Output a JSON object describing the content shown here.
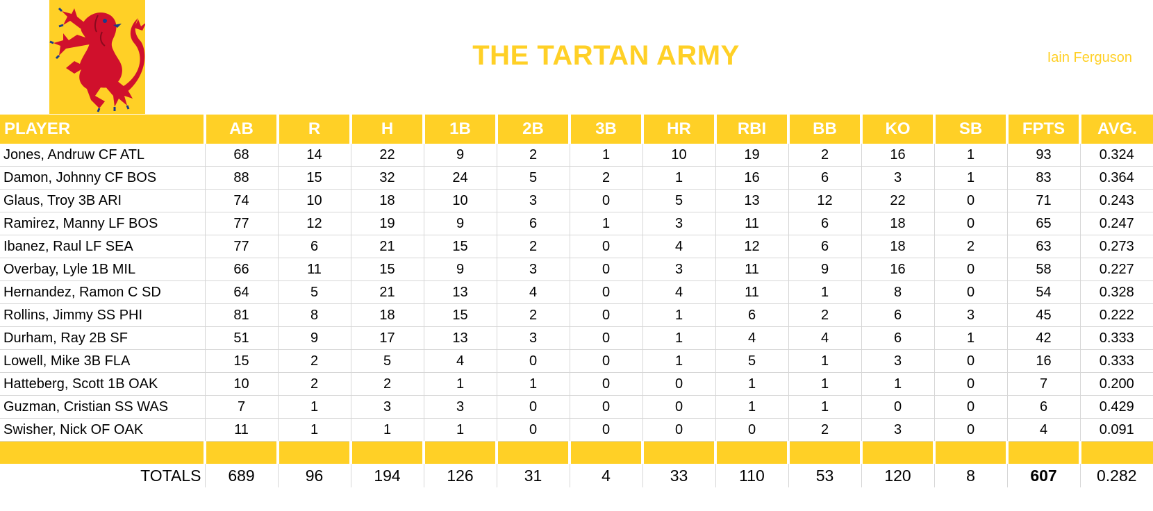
{
  "header": {
    "title": "THE TARTAN ARMY",
    "owner": "Iain Ferguson",
    "logo_icon": "rampant-lion-icon",
    "accent_color": "#FFD026",
    "lion_color": "#D0102C"
  },
  "table": {
    "columns": [
      "PLAYER",
      "AB",
      "R",
      "H",
      "1B",
      "2B",
      "3B",
      "HR",
      "RBI",
      "BB",
      "KO",
      "SB",
      "FPTS",
      "AVG."
    ],
    "rows": [
      [
        "Jones, Andruw CF ATL",
        "68",
        "14",
        "22",
        "9",
        "2",
        "1",
        "10",
        "19",
        "2",
        "16",
        "1",
        "93",
        "0.324"
      ],
      [
        "Damon, Johnny CF BOS",
        "88",
        "15",
        "32",
        "24",
        "5",
        "2",
        "1",
        "16",
        "6",
        "3",
        "1",
        "83",
        "0.364"
      ],
      [
        "Glaus, Troy 3B ARI",
        "74",
        "10",
        "18",
        "10",
        "3",
        "0",
        "5",
        "13",
        "12",
        "22",
        "0",
        "71",
        "0.243"
      ],
      [
        "Ramirez, Manny LF BOS",
        "77",
        "12",
        "19",
        "9",
        "6",
        "1",
        "3",
        "11",
        "6",
        "18",
        "0",
        "65",
        "0.247"
      ],
      [
        "Ibanez, Raul LF SEA",
        "77",
        "6",
        "21",
        "15",
        "2",
        "0",
        "4",
        "12",
        "6",
        "18",
        "2",
        "63",
        "0.273"
      ],
      [
        "Overbay, Lyle 1B MIL",
        "66",
        "11",
        "15",
        "9",
        "3",
        "0",
        "3",
        "11",
        "9",
        "16",
        "0",
        "58",
        "0.227"
      ],
      [
        "Hernandez, Ramon C SD",
        "64",
        "5",
        "21",
        "13",
        "4",
        "0",
        "4",
        "11",
        "1",
        "8",
        "0",
        "54",
        "0.328"
      ],
      [
        "Rollins, Jimmy SS PHI",
        "81",
        "8",
        "18",
        "15",
        "2",
        "0",
        "1",
        "6",
        "2",
        "6",
        "3",
        "45",
        "0.222"
      ],
      [
        "Durham, Ray 2B SF",
        "51",
        "9",
        "17",
        "13",
        "3",
        "0",
        "1",
        "4",
        "4",
        "6",
        "1",
        "42",
        "0.333"
      ],
      [
        "Lowell, Mike 3B FLA",
        "15",
        "2",
        "5",
        "4",
        "0",
        "0",
        "1",
        "5",
        "1",
        "3",
        "0",
        "16",
        "0.333"
      ],
      [
        "Hatteberg, Scott 1B OAK",
        "10",
        "2",
        "2",
        "1",
        "1",
        "0",
        "0",
        "1",
        "1",
        "1",
        "0",
        "7",
        "0.200"
      ],
      [
        "Guzman, Cristian SS WAS",
        "7",
        "1",
        "3",
        "3",
        "0",
        "0",
        "0",
        "1",
        "1",
        "0",
        "0",
        "6",
        "0.429"
      ],
      [
        "Swisher, Nick OF OAK",
        "11",
        "1",
        "1",
        "1",
        "0",
        "0",
        "0",
        "0",
        "2",
        "3",
        "0",
        "4",
        "0.091"
      ]
    ],
    "totals": [
      "TOTALS",
      "689",
      "96",
      "194",
      "126",
      "31",
      "4",
      "33",
      "110",
      "53",
      "120",
      "8",
      "607",
      "0.282"
    ]
  }
}
